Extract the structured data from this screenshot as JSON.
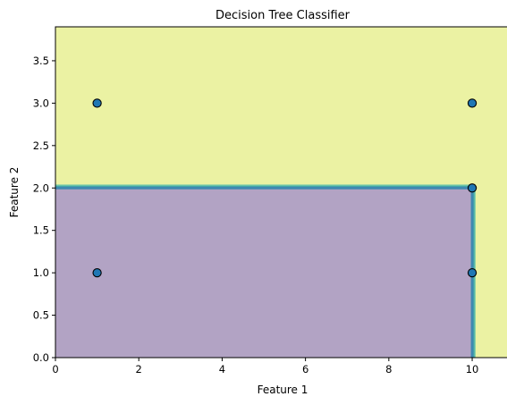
{
  "chart_data": {
    "type": "scatter",
    "title": "Decision Tree Classifier",
    "xlabel": "Feature 1",
    "ylabel": "Feature 2",
    "xlim": [
      0,
      10.9
    ],
    "ylim": [
      0,
      3.9
    ],
    "xticks": [
      "0",
      "2",
      "4",
      "6",
      "8",
      "10"
    ],
    "yticks": [
      "0.0",
      "0.5",
      "1.0",
      "1.5",
      "2.0",
      "2.5",
      "3.0",
      "3.5"
    ],
    "grid": false,
    "decision_regions": [
      {
        "class": 0,
        "x": [
          0,
          10
        ],
        "y": [
          0,
          2
        ],
        "color": "#b2a3c4"
      },
      {
        "class": 1,
        "x": [
          0,
          10.9
        ],
        "y": [
          0,
          3.9
        ],
        "color": "#ebf2a3"
      }
    ],
    "boundary_colors": [
      "#7fcfa9",
      "#45a9a8",
      "#3f88b0"
    ],
    "points": [
      {
        "x": 1,
        "y": 3
      },
      {
        "x": 10,
        "y": 3
      },
      {
        "x": 10,
        "y": 2
      },
      {
        "x": 1,
        "y": 1
      },
      {
        "x": 10,
        "y": 1
      }
    ],
    "point_color": "#1f77b4",
    "point_edge_color": "#000000"
  }
}
